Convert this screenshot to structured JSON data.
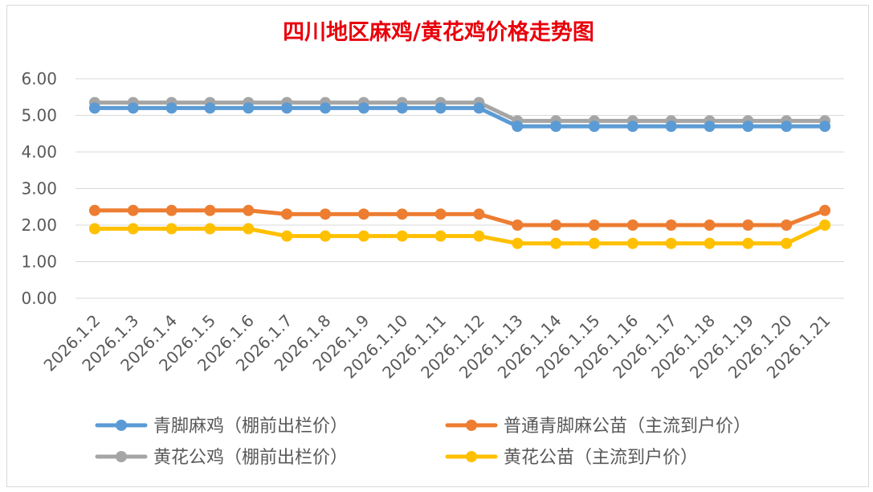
{
  "chart_data": {
    "type": "line",
    "title": "四川地区麻鸡/黄花鸡价格走势图",
    "xlabel": "",
    "ylabel": "",
    "ylim": [
      0,
      6
    ],
    "yticks": [
      "0.00",
      "1.00",
      "2.00",
      "3.00",
      "4.00",
      "5.00",
      "6.00"
    ],
    "grid": true,
    "legend_position": "bottom",
    "categories": [
      "2026.1.2",
      "2026.1.3",
      "2026.1.4",
      "2026.1.5",
      "2026.1.6",
      "2026.1.7",
      "2026.1.8",
      "2026.1.9",
      "2026.1.10",
      "2026.1.11",
      "2026.1.12",
      "2026.1.13",
      "2026.1.14",
      "2026.1.15",
      "2026.1.16",
      "2026.1.17",
      "2026.1.18",
      "2026.1.19",
      "2026.1.20",
      "2026.1.21"
    ],
    "series": [
      {
        "name": "青脚麻鸡（棚前出栏价）",
        "color": "#5b9bd5",
        "values": [
          5.2,
          5.2,
          5.2,
          5.2,
          5.2,
          5.2,
          5.2,
          5.2,
          5.2,
          5.2,
          5.2,
          4.7,
          4.7,
          4.7,
          4.7,
          4.7,
          4.7,
          4.7,
          4.7,
          4.7
        ]
      },
      {
        "name": "普通青脚麻公苗（主流到户价）",
        "color": "#ed7d31",
        "values": [
          2.4,
          2.4,
          2.4,
          2.4,
          2.4,
          2.3,
          2.3,
          2.3,
          2.3,
          2.3,
          2.3,
          2.0,
          2.0,
          2.0,
          2.0,
          2.0,
          2.0,
          2.0,
          2.0,
          2.4
        ]
      },
      {
        "name": "黄花公鸡（棚前出栏价）",
        "color": "#a5a5a5",
        "values": [
          5.35,
          5.35,
          5.35,
          5.35,
          5.35,
          5.35,
          5.35,
          5.35,
          5.35,
          5.35,
          5.35,
          4.85,
          4.85,
          4.85,
          4.85,
          4.85,
          4.85,
          4.85,
          4.85,
          4.85
        ]
      },
      {
        "name": "黄花公苗（主流到户价）",
        "color": "#ffc000",
        "values": [
          1.9,
          1.9,
          1.9,
          1.9,
          1.9,
          1.7,
          1.7,
          1.7,
          1.7,
          1.7,
          1.7,
          1.5,
          1.5,
          1.5,
          1.5,
          1.5,
          1.5,
          1.5,
          1.5,
          2.0
        ]
      }
    ]
  },
  "legend_order": [
    0,
    1,
    2,
    3
  ]
}
